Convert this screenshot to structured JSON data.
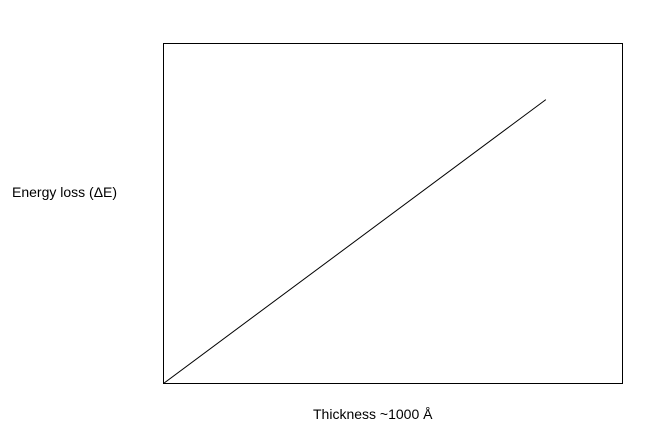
{
  "chart_data": {
    "type": "line",
    "title": "",
    "xlabel": "Thickness ~1000 Å",
    "ylabel": "Energy loss (ΔE)",
    "grid": false,
    "xlim": [
      0,
      100
    ],
    "ylim": [
      0,
      100
    ],
    "series": [
      {
        "x": [
          0,
          83.3
        ],
        "y": [
          0,
          83.5
        ]
      }
    ],
    "colors": {
      "line": "#000000",
      "frame": "#000000",
      "background": "#ffffff"
    }
  }
}
